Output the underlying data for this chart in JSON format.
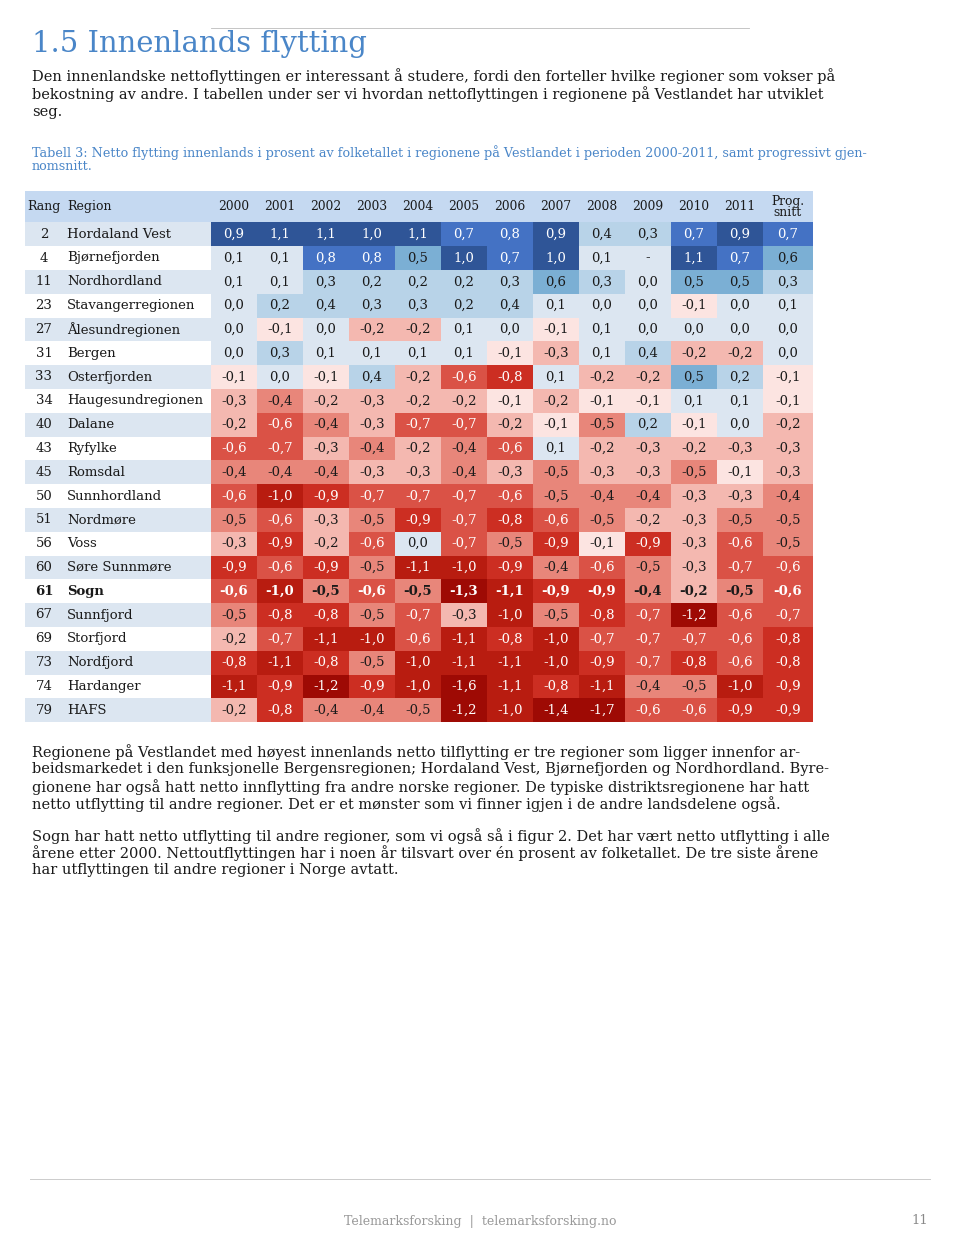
{
  "title_heading": "1.5 Innenlands flytting",
  "heading_color": "#4a86c8",
  "table_caption_color": "#4a86c8",
  "columns": [
    "Rang",
    "Region",
    "2000",
    "2001",
    "2002",
    "2003",
    "2004",
    "2005",
    "2006",
    "2007",
    "2008",
    "2009",
    "2010",
    "2011",
    "Prog.\nsnitt"
  ],
  "rows": [
    {
      "rang": "2",
      "region": "Hordaland Vest",
      "values": [
        0.9,
        1.1,
        1.1,
        1.0,
        1.1,
        0.7,
        0.8,
        0.9,
        0.4,
        0.3,
        0.7,
        0.9,
        0.7
      ],
      "bold": false
    },
    {
      "rang": "4",
      "region": "Bjørnefjorden",
      "values": [
        0.1,
        0.1,
        0.8,
        0.8,
        0.5,
        1.0,
        0.7,
        1.0,
        0.1,
        null,
        1.1,
        0.7,
        0.6
      ],
      "bold": false
    },
    {
      "rang": "11",
      "region": "Nordhordland",
      "values": [
        0.1,
        0.1,
        0.3,
        0.2,
        0.2,
        0.2,
        0.3,
        0.6,
        0.3,
        0.0,
        0.5,
        0.5,
        0.3
      ],
      "bold": false
    },
    {
      "rang": "23",
      "region": "Stavangerregionen",
      "values": [
        0.0,
        0.2,
        0.4,
        0.3,
        0.3,
        0.2,
        0.4,
        0.1,
        0.0,
        0.0,
        -0.1,
        0.0,
        0.1
      ],
      "bold": false
    },
    {
      "rang": "27",
      "region": "Ålesundregionen",
      "values": [
        0.0,
        -0.1,
        0.0,
        -0.2,
        -0.2,
        0.1,
        0.0,
        -0.1,
        0.1,
        0.0,
        0.0,
        0.0,
        0.0
      ],
      "bold": false
    },
    {
      "rang": "31",
      "region": "Bergen",
      "values": [
        0.0,
        0.3,
        0.1,
        0.1,
        0.1,
        0.1,
        -0.1,
        -0.3,
        0.1,
        0.4,
        -0.2,
        -0.2,
        0.0
      ],
      "bold": false
    },
    {
      "rang": "33",
      "region": "Osterfjorden",
      "values": [
        -0.1,
        0.0,
        -0.1,
        0.4,
        -0.2,
        -0.6,
        -0.8,
        0.1,
        -0.2,
        -0.2,
        0.5,
        0.2,
        -0.1
      ],
      "bold": false
    },
    {
      "rang": "34",
      "region": "Haugesundregionen",
      "values": [
        -0.3,
        -0.4,
        -0.2,
        -0.3,
        -0.2,
        -0.2,
        -0.1,
        -0.2,
        -0.1,
        -0.1,
        0.1,
        0.1,
        -0.1
      ],
      "bold": false
    },
    {
      "rang": "40",
      "region": "Dalane",
      "values": [
        -0.2,
        -0.6,
        -0.4,
        -0.3,
        -0.7,
        -0.7,
        -0.2,
        -0.1,
        -0.5,
        0.2,
        -0.1,
        0.0,
        -0.2
      ],
      "bold": false
    },
    {
      "rang": "43",
      "region": "Ryfylke",
      "values": [
        -0.6,
        -0.7,
        -0.3,
        -0.4,
        -0.2,
        -0.4,
        -0.6,
        0.1,
        -0.2,
        -0.3,
        -0.2,
        -0.3,
        -0.3
      ],
      "bold": false
    },
    {
      "rang": "45",
      "region": "Romsdal",
      "values": [
        -0.4,
        -0.4,
        -0.4,
        -0.3,
        -0.3,
        -0.4,
        -0.3,
        -0.5,
        -0.3,
        -0.3,
        -0.5,
        -0.1,
        -0.3
      ],
      "bold": false
    },
    {
      "rang": "50",
      "region": "Sunnhordland",
      "values": [
        -0.6,
        -1.0,
        -0.9,
        -0.7,
        -0.7,
        -0.7,
        -0.6,
        -0.5,
        -0.4,
        -0.4,
        -0.3,
        -0.3,
        -0.4
      ],
      "bold": false
    },
    {
      "rang": "51",
      "region": "Nordmøre",
      "values": [
        -0.5,
        -0.6,
        -0.3,
        -0.5,
        -0.9,
        -0.7,
        -0.8,
        -0.6,
        -0.5,
        -0.2,
        -0.3,
        -0.5,
        -0.5
      ],
      "bold": false
    },
    {
      "rang": "56",
      "region": "Voss",
      "values": [
        -0.3,
        -0.9,
        -0.2,
        -0.6,
        0.0,
        -0.7,
        -0.5,
        -0.9,
        -0.1,
        -0.9,
        -0.3,
        -0.6,
        -0.5
      ],
      "bold": false
    },
    {
      "rang": "60",
      "region": "Søre Sunnmøre",
      "values": [
        -0.9,
        -0.6,
        -0.9,
        -0.5,
        -1.1,
        -1.0,
        -0.9,
        -0.4,
        -0.6,
        -0.5,
        -0.3,
        -0.7,
        -0.6
      ],
      "bold": false
    },
    {
      "rang": "61",
      "region": "Sogn",
      "values": [
        -0.6,
        -1.0,
        -0.5,
        -0.6,
        -0.5,
        -1.3,
        -1.1,
        -0.9,
        -0.9,
        -0.4,
        -0.2,
        -0.5,
        -0.6
      ],
      "bold": true
    },
    {
      "rang": "67",
      "region": "Sunnfjord",
      "values": [
        -0.5,
        -0.8,
        -0.8,
        -0.5,
        -0.7,
        -0.3,
        -1.0,
        -0.5,
        -0.8,
        -0.7,
        -1.2,
        -0.6,
        -0.7
      ],
      "bold": false
    },
    {
      "rang": "69",
      "region": "Storfjord",
      "values": [
        -0.2,
        -0.7,
        -1.1,
        -1.0,
        -0.6,
        -1.1,
        -0.8,
        -1.0,
        -0.7,
        -0.7,
        -0.7,
        -0.6,
        -0.8
      ],
      "bold": false
    },
    {
      "rang": "73",
      "region": "Nordfjord",
      "values": [
        -0.8,
        -1.1,
        -0.8,
        -0.5,
        -1.0,
        -1.1,
        -1.1,
        -1.0,
        -0.9,
        -0.7,
        -0.8,
        -0.6,
        -0.8
      ],
      "bold": false
    },
    {
      "rang": "74",
      "region": "Hardanger",
      "values": [
        -1.1,
        -0.9,
        -1.2,
        -0.9,
        -1.0,
        -1.6,
        -1.1,
        -0.8,
        -1.1,
        -0.4,
        -0.5,
        -1.0,
        -0.9
      ],
      "bold": false
    },
    {
      "rang": "79",
      "region": "HAFS",
      "values": [
        -0.2,
        -0.8,
        -0.4,
        -0.4,
        -0.5,
        -1.2,
        -1.0,
        -1.4,
        -1.7,
        -0.6,
        -0.6,
        -0.9,
        -0.9
      ],
      "bold": false
    }
  ],
  "intro_lines": [
    "Den innenlandske nettoflyttingen er interessant å studere, fordi den forteller hvilke regioner som vokser på",
    "bekostning av andre. I tabellen under ser vi hvordan nettoflyttingen i regionene på Vestlandet har utviklet",
    "seg."
  ],
  "caption_lines": [
    "Tabell 3: Netto flytting innenlands i prosent av folketallet i regionene på Vestlandet i perioden 2000-2011, samt progressivt gjen-",
    "nomsnitt."
  ],
  "body1_lines": [
    "Regionene på Vestlandet med høyest innenlands netto tilflytting er tre regioner som ligger innenfor ar-",
    "beidsmarkedet i den funksjonelle Bergensregionen; Hordaland Vest, Bjørnefjorden og Nordhordland. Byre-",
    "gionene har også hatt netto innflytting fra andre norske regioner. De typiske distriktsregionene har hatt",
    "netto utflytting til andre regioner. Det er et mønster som vi finner igjen i de andre landsdelene også."
  ],
  "body2_lines": [
    "Sogn har hatt netto utflytting til andre regioner, som vi også så i figur 2. Det har vært netto utflytting i alle",
    "årene etter 2000. Nettoutflyttingen har i noen år tilsvart over én prosent av folketallet. De tre siste årene",
    "har utflyttingen til andre regioner i Norge avtatt."
  ],
  "footer_text": "Telemarksforsking  |  telemarksforsking.no",
  "page_number": "11"
}
